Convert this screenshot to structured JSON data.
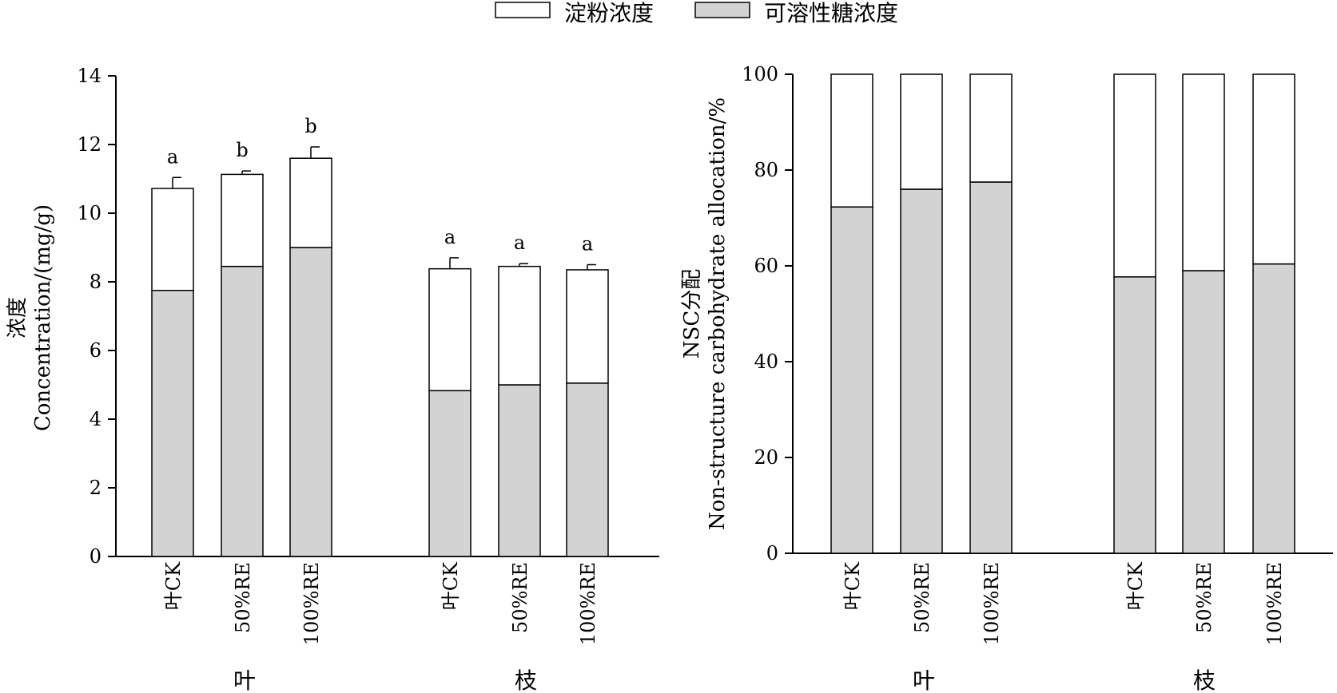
{
  "legend": [
    {
      "label": "淀粉浓度",
      "color": "#ffffff"
    },
    {
      "label": "可溶性糖浓度",
      "color": "#d3d3d3"
    }
  ],
  "chart_data": [
    {
      "type": "bar",
      "stacked": true,
      "ylabel_cn": "浓度",
      "ylabel": "Concentration/(mg/g)",
      "ylim": [
        0,
        14
      ],
      "yticks": [
        0,
        2,
        4,
        6,
        8,
        10,
        12,
        14
      ],
      "groups": [
        {
          "label": "叶",
          "categories": [
            "叶CK",
            "50%RE",
            "100%RE"
          ]
        },
        {
          "label": "枝",
          "categories": [
            "叶CK",
            "50%RE",
            "100%RE"
          ]
        }
      ],
      "series": [
        {
          "name": "可溶性糖浓度",
          "values": [
            7.75,
            8.45,
            9.0,
            4.83,
            5.0,
            5.05
          ]
        },
        {
          "name": "淀粉浓度",
          "values": [
            2.97,
            2.68,
            2.6,
            3.55,
            3.45,
            3.3
          ]
        }
      ],
      "totals": [
        10.72,
        11.13,
        11.6,
        8.38,
        8.45,
        8.35
      ],
      "error": [
        0.32,
        0.1,
        0.33,
        0.32,
        0.08,
        0.15
      ],
      "significance": [
        "a",
        "b",
        "b",
        "a",
        "a",
        "a"
      ]
    },
    {
      "type": "bar",
      "stacked": true,
      "ylabel_cn": "NSC分配",
      "ylabel": "Non-structure carbohydrate allocation/%",
      "ylim": [
        0,
        100
      ],
      "yticks": [
        0,
        20,
        40,
        60,
        80,
        100
      ],
      "groups": [
        {
          "label": "叶",
          "categories": [
            "叶CK",
            "50%RE",
            "100%RE"
          ]
        },
        {
          "label": "枝",
          "categories": [
            "叶CK",
            "50%RE",
            "100%RE"
          ]
        }
      ],
      "series": [
        {
          "name": "可溶性糖浓度",
          "values": [
            72.3,
            76.0,
            77.5,
            57.7,
            59.0,
            60.4
          ]
        },
        {
          "name": "淀粉浓度",
          "values": [
            27.7,
            24.0,
            22.5,
            42.3,
            41.0,
            39.6
          ]
        }
      ]
    }
  ]
}
